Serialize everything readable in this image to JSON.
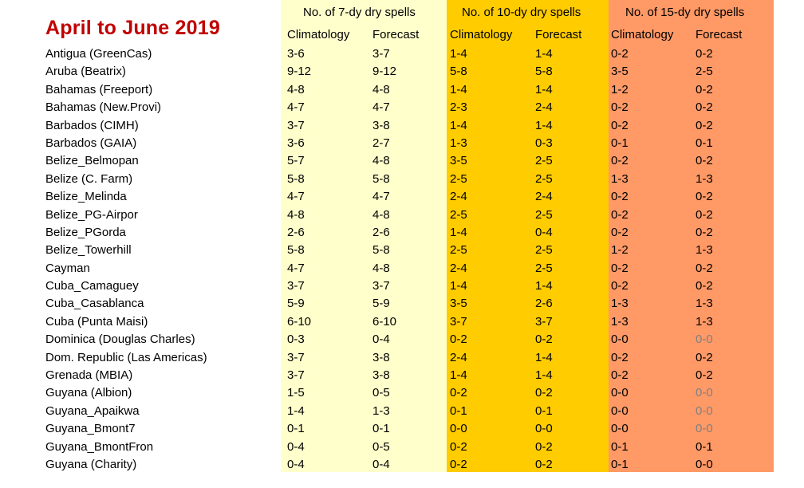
{
  "title": "April to June 2019",
  "groups": [
    {
      "label": "No. of 7-dy dry spells",
      "color": "#ffffcc"
    },
    {
      "label": "No. of 10-dy dry spells",
      "color": "#ffcc00"
    },
    {
      "label": "No. of 15-dy dry spells",
      "color": "#ff9966"
    }
  ],
  "column_labels": {
    "climatology": "Climatology",
    "forecast": "Forecast"
  },
  "muted_color": "#808080",
  "stations": [
    "Antigua (GreenCas)",
    "Aruba (Beatrix)",
    "Bahamas (Freeport)",
    "Bahamas (New.Provi)",
    "Barbados (CIMH)",
    "Barbados (GAIA)",
    "Belize_Belmopan",
    "Belize (C. Farm)",
    "Belize_Melinda",
    "Belize_PG-Airpor",
    "Belize_PGorda",
    "Belize_Towerhill",
    "Cayman",
    "Cuba_Camaguey",
    "Cuba_Casablanca",
    "Cuba (Punta Maisi)",
    "Dominica (Douglas Charles)",
    "Dom. Republic (Las Americas)",
    "Grenada (MBIA)",
    "Guyana (Albion)",
    "Guyana_Apaikwa",
    "Guyana_Bmont7",
    "Guyana_BmontFron",
    "Guyana (Charity)"
  ],
  "spells7": {
    "climatology": [
      "3-6",
      "9-12",
      "4-8",
      "4-7",
      "3-7",
      "3-6",
      "5-7",
      "5-8",
      "4-7",
      "4-8",
      "2-6",
      "5-8",
      "4-7",
      "3-7",
      "5-9",
      "6-10",
      "0-3",
      "3-7",
      "3-7",
      "1-5",
      "1-4",
      "0-1",
      "0-4",
      "0-4"
    ],
    "forecast": [
      "3-7",
      "9-12",
      "4-8",
      "4-7",
      "3-8",
      "2-7",
      "4-8",
      "5-8",
      "4-7",
      "4-8",
      "2-6",
      "5-8",
      "4-8",
      "3-7",
      "5-9",
      "6-10",
      "0-4",
      "3-8",
      "3-8",
      "0-5",
      "1-3",
      "0-1",
      "0-5",
      "0-4"
    ]
  },
  "spells10": {
    "climatology": [
      "1-4",
      "5-8",
      "1-4",
      "2-3",
      "1-4",
      "1-3",
      "3-5",
      "2-5",
      "2-4",
      "2-5",
      "1-4",
      "2-5",
      "2-4",
      "1-4",
      "3-5",
      "3-7",
      "0-2",
      "2-4",
      "1-4",
      "0-2",
      "0-1",
      "0-0",
      "0-2",
      "0-2"
    ],
    "forecast": [
      "1-4",
      "5-8",
      "1-4",
      "2-4",
      "1-4",
      "0-3",
      "2-5",
      "2-5",
      "2-4",
      "2-5",
      "0-4",
      "2-5",
      "2-5",
      "1-4",
      "2-6",
      "3-7",
      "0-2",
      "1-4",
      "1-4",
      "0-2",
      "0-1",
      "0-0",
      "0-2",
      "0-2"
    ]
  },
  "spells15": {
    "climatology": [
      "0-2",
      "3-5",
      "1-2",
      "0-2",
      "0-2",
      "0-1",
      "0-2",
      "1-3",
      "0-2",
      "0-2",
      "0-2",
      "1-2",
      "0-2",
      "0-2",
      "1-3",
      "1-3",
      "0-0",
      "0-2",
      "0-2",
      "0-0",
      "0-0",
      "0-0",
      "0-1",
      "0-1"
    ],
    "forecast": [
      "0-2",
      "2-5",
      "0-2",
      "0-2",
      "0-2",
      "0-1",
      "0-2",
      "1-3",
      "0-2",
      "0-2",
      "0-2",
      "1-3",
      "0-2",
      "0-2",
      "1-3",
      "1-3",
      "0-0",
      "0-2",
      "0-2",
      "0-0",
      "0-0",
      "0-0",
      "0-1",
      "0-0"
    ],
    "forecast_muted_rows": [
      16,
      19,
      20,
      21
    ]
  }
}
